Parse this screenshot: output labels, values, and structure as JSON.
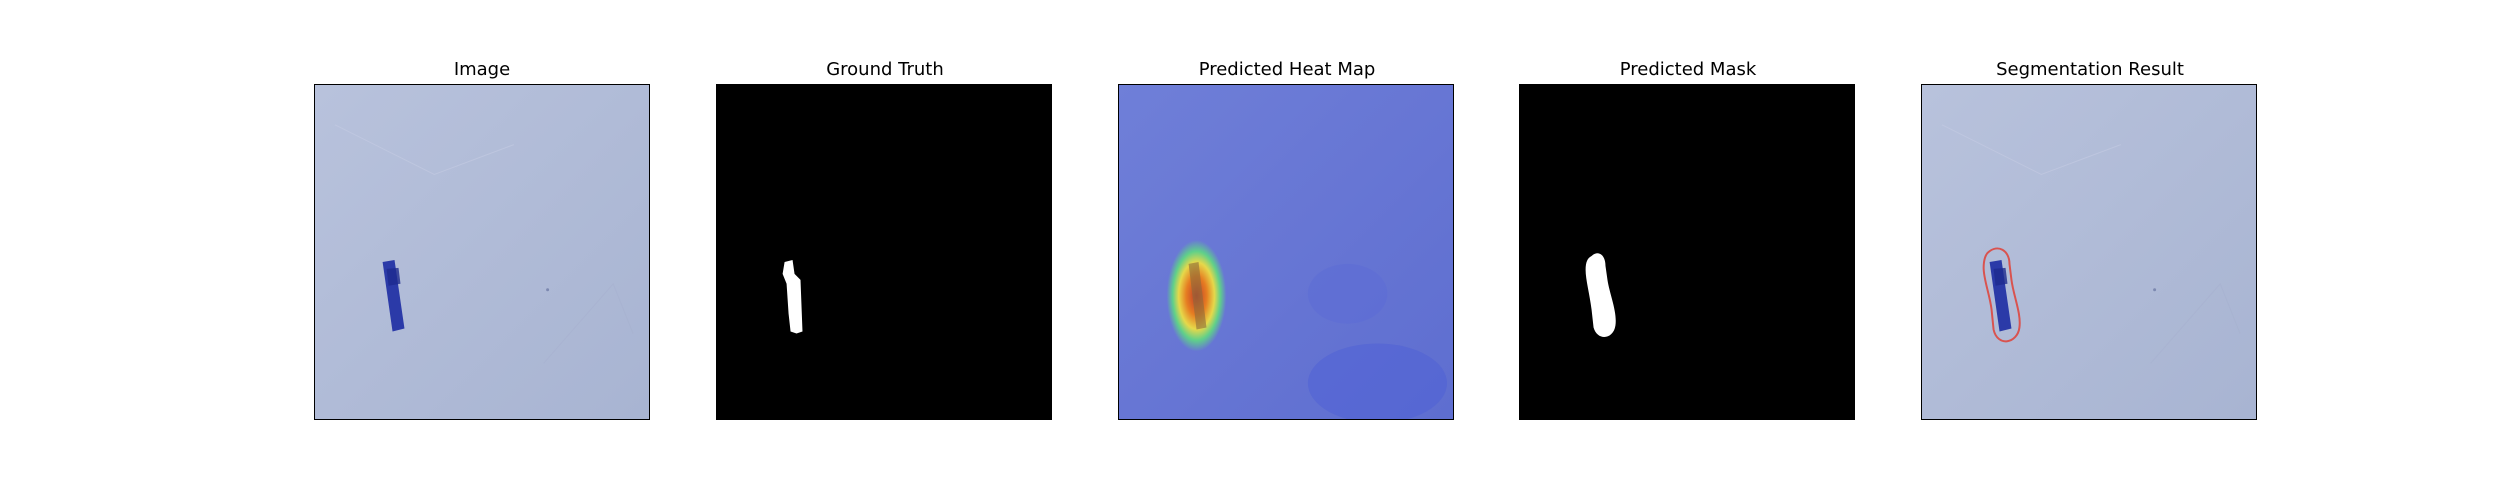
{
  "figure": {
    "panels": [
      {
        "title": "Image"
      },
      {
        "title": "Ground Truth"
      },
      {
        "title": "Predicted Heat Map"
      },
      {
        "title": "Predicted Mask"
      },
      {
        "title": "Segmentation Result"
      }
    ]
  },
  "colors": {
    "image_background": "#b3bfd9",
    "object_blue": "#2b3aa8",
    "mask_foreground": "#ffffff",
    "mask_background": "#000000",
    "heatmap_base": "#6a78d6",
    "contour": "#d9534f"
  }
}
